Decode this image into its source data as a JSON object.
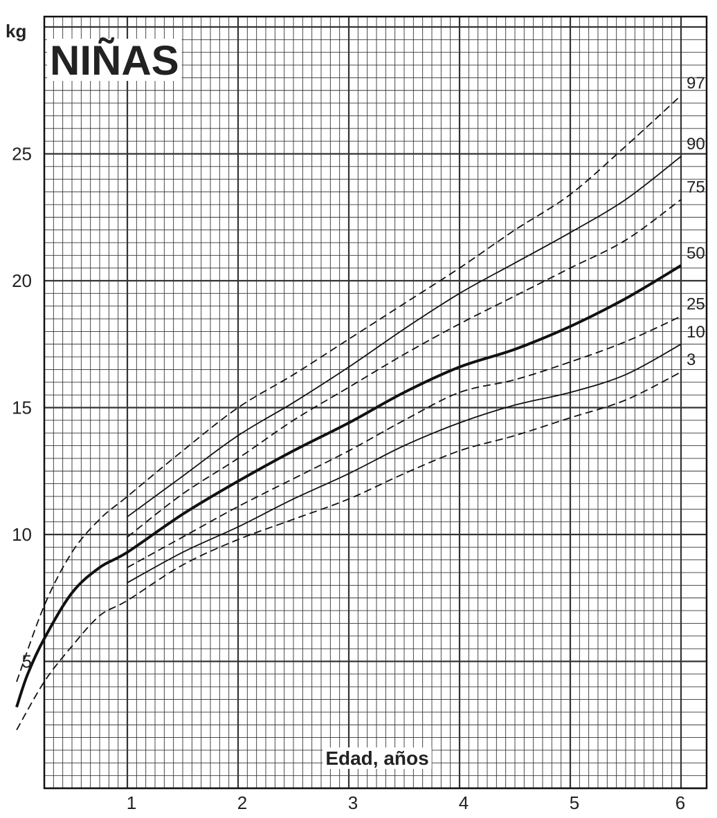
{
  "chart_data": {
    "type": "line",
    "title": "NIÑAS",
    "xlabel": "Edad, años",
    "ylabel": "kg",
    "xlim": [
      0,
      6
    ],
    "ylim": [
      0,
      30
    ],
    "x_ticks": [
      1,
      2,
      3,
      4,
      5,
      6
    ],
    "y_ticks": [
      5,
      10,
      15,
      20,
      25
    ],
    "grid": true,
    "series": [
      {
        "name": "97",
        "style": "dashed",
        "x": [
          0,
          0.25,
          0.5,
          0.75,
          1,
          1.5,
          2,
          2.5,
          3,
          3.5,
          4,
          4.5,
          5,
          5.5,
          6
        ],
        "values": [
          4.2,
          7.2,
          9.3,
          10.6,
          11.5,
          13.3,
          15.0,
          16.3,
          17.7,
          19.1,
          20.5,
          22.0,
          23.4,
          25.3,
          27.3
        ]
      },
      {
        "name": "90",
        "style": "solid",
        "x": [
          1,
          1.5,
          2,
          2.5,
          3,
          3.5,
          4,
          4.5,
          5,
          5.5,
          6
        ],
        "values": [
          10.7,
          12.3,
          13.9,
          15.2,
          16.6,
          18.1,
          19.5,
          20.7,
          21.9,
          23.2,
          24.9
        ]
      },
      {
        "name": "75",
        "style": "dashed",
        "x": [
          1,
          1.5,
          2,
          2.5,
          3,
          3.5,
          4,
          4.5,
          5,
          5.5,
          6
        ],
        "values": [
          9.9,
          11.6,
          13.0,
          14.5,
          15.8,
          17.1,
          18.3,
          19.4,
          20.5,
          21.6,
          23.2
        ]
      },
      {
        "name": "50",
        "style": "bold",
        "x": [
          0,
          0.1,
          0.25,
          0.5,
          0.75,
          1,
          1.5,
          2,
          2.5,
          3,
          3.5,
          4,
          4.5,
          5,
          5.5,
          6
        ],
        "values": [
          3.2,
          4.5,
          5.9,
          7.7,
          8.7,
          9.3,
          10.8,
          12.1,
          13.3,
          14.4,
          15.6,
          16.6,
          17.3,
          18.2,
          19.3,
          20.6
        ]
      },
      {
        "name": "25",
        "style": "dashed",
        "x": [
          1,
          1.5,
          2,
          2.5,
          3,
          3.5,
          4,
          4.5,
          5,
          5.5,
          6
        ],
        "values": [
          8.7,
          9.9,
          11.1,
          12.2,
          13.3,
          14.5,
          15.6,
          16.1,
          16.8,
          17.6,
          18.6
        ]
      },
      {
        "name": "10",
        "style": "solid",
        "x": [
          1,
          1.5,
          2,
          2.5,
          3,
          3.5,
          4,
          4.5,
          5,
          5.5,
          6
        ],
        "values": [
          8.1,
          9.3,
          10.3,
          11.4,
          12.4,
          13.5,
          14.4,
          15.1,
          15.6,
          16.3,
          17.5
        ]
      },
      {
        "name": "3",
        "style": "dashed",
        "x": [
          0,
          0.25,
          0.5,
          0.75,
          1,
          1.5,
          2,
          2.5,
          3,
          3.5,
          4,
          4.5,
          5,
          5.5,
          6
        ],
        "values": [
          2.3,
          4.2,
          5.6,
          6.8,
          7.4,
          8.8,
          9.8,
          10.6,
          11.4,
          12.4,
          13.3,
          13.9,
          14.6,
          15.3,
          16.4
        ]
      }
    ]
  }
}
